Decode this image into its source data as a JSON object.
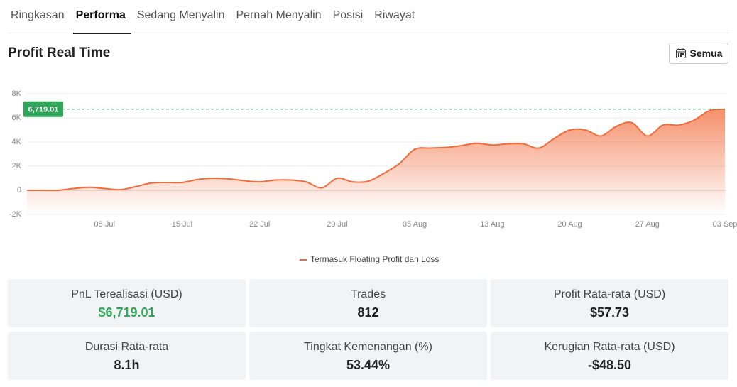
{
  "tabs": [
    "Ringkasan",
    "Performa",
    "Sedang Menyalin",
    "Pernah Menyalin",
    "Posisi",
    "Riwayat"
  ],
  "active_tab": 1,
  "section_title": "Profit Real Time",
  "filter_button": "Semua",
  "chart_data": {
    "type": "area",
    "categories": [
      null,
      null,
      null,
      null,
      null,
      "08 Jul",
      null,
      null,
      null,
      null,
      "15 Jul",
      null,
      null,
      null,
      null,
      "22 Jul",
      null,
      null,
      null,
      null,
      "29 Jul",
      null,
      null,
      null,
      null,
      "05 Aug",
      null,
      null,
      null,
      null,
      "13 Aug",
      null,
      null,
      null,
      null,
      "20 Aug",
      null,
      null,
      null,
      null,
      "27 Aug",
      null,
      null,
      null,
      null,
      "03 Sep"
    ],
    "series": [
      {
        "name": "Termasuk Floating Profit dan Loss",
        "color": "#f26b3a",
        "values": [
          0,
          0,
          0,
          150,
          250,
          150,
          50,
          300,
          600,
          650,
          650,
          900,
          1000,
          950,
          800,
          700,
          850,
          850,
          700,
          200,
          1000,
          700,
          750,
          1400,
          2200,
          3400,
          3500,
          3550,
          3700,
          3900,
          3750,
          3850,
          3850,
          3500,
          4300,
          5000,
          5000,
          4500,
          5300,
          5600,
          4500,
          5400,
          5400,
          5800,
          6600,
          6719.01
        ]
      }
    ],
    "ylim": [
      -2000,
      8000
    ],
    "yticks": [
      {
        "value": -2000,
        "label": "-2K"
      },
      0,
      {
        "value": 2000,
        "label": "2K"
      },
      {
        "value": 4000,
        "label": "4K"
      },
      {
        "value": 6000,
        "label": "6K"
      },
      {
        "value": 8000,
        "label": "8K"
      }
    ],
    "reference_line": {
      "value": 6719.01,
      "label": "6,719.01",
      "color": "#2fa65a"
    },
    "grid": true
  },
  "stats": [
    {
      "label": "PnL Terealisasi (USD)",
      "value": "$6,719.01",
      "highlight": true
    },
    {
      "label": "Trades",
      "value": "812"
    },
    {
      "label": "Profit Rata-rata (USD)",
      "value": "$57.73"
    },
    {
      "label": "Durasi Rata-rata",
      "value": "8.1h"
    },
    {
      "label": "Tingkat Kemenangan (%)",
      "value": "53.44%"
    },
    {
      "label": "Kerugian Rata-rata (USD)",
      "value": "-$48.50"
    }
  ]
}
